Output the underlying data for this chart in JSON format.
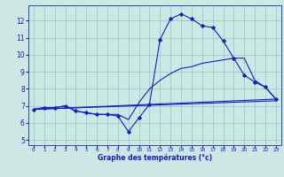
{
  "xlabel": "Graphe des températures (°c)",
  "bg_color": "#cce8e4",
  "grid_color": "#99cccc",
  "line_color": "#1a1acc",
  "x_ticks": [
    0,
    1,
    2,
    3,
    4,
    5,
    6,
    7,
    8,
    9,
    10,
    11,
    12,
    13,
    14,
    15,
    16,
    17,
    18,
    19,
    20,
    21,
    22,
    23
  ],
  "y_ticks": [
    5,
    6,
    7,
    8,
    9,
    10,
    11,
    12
  ],
  "ylim": [
    4.7,
    12.9
  ],
  "xlim": [
    -0.5,
    23.5
  ],
  "series1_x": [
    0,
    1,
    2,
    3,
    4,
    5,
    6,
    7,
    8,
    9,
    10,
    11,
    12,
    13,
    14,
    15,
    16,
    17,
    18,
    19,
    20,
    21,
    22,
    23
  ],
  "series1_y": [
    6.8,
    6.9,
    6.9,
    7.0,
    6.7,
    6.6,
    6.5,
    6.5,
    6.4,
    5.5,
    6.3,
    7.1,
    10.9,
    12.1,
    12.4,
    12.1,
    11.7,
    11.6,
    10.8,
    9.8,
    8.8,
    8.4,
    8.1,
    7.4
  ],
  "series2_x": [
    0,
    1,
    2,
    3,
    4,
    5,
    6,
    7,
    8,
    9,
    10,
    11,
    12,
    13,
    14,
    15,
    16,
    17,
    18,
    19,
    20,
    21,
    22,
    23
  ],
  "series2_y": [
    6.8,
    6.9,
    6.9,
    7.0,
    6.7,
    6.6,
    6.5,
    6.5,
    6.5,
    6.2,
    7.2,
    8.0,
    8.5,
    8.9,
    9.2,
    9.3,
    9.5,
    9.6,
    9.7,
    9.8,
    9.8,
    8.5,
    8.1,
    7.4
  ],
  "series3_x": [
    0,
    23
  ],
  "series3_y": [
    6.8,
    7.4
  ],
  "series4_x": [
    0,
    23
  ],
  "series4_y": [
    6.8,
    7.3
  ]
}
